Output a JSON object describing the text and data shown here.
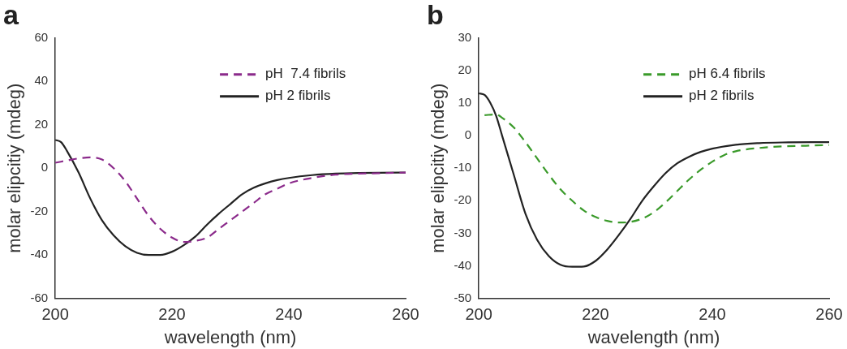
{
  "chart_data": [
    {
      "type": "line",
      "title": "a",
      "xlabel": "wavelength (nm)",
      "ylabel": "molar elipcitiy (mdeg)",
      "xlim": [
        200,
        260
      ],
      "xticks": [
        200,
        220,
        240,
        260
      ],
      "ylim": [
        -60,
        60
      ],
      "yticks": [
        -60,
        -40,
        -20,
        0,
        20,
        40,
        60
      ],
      "legend": "top right",
      "grid": false,
      "marker": "none",
      "series": [
        {
          "name": "pH  7.4 fibrils",
          "color": "#8b2a8b",
          "line_style": "dashed",
          "x": [
            200,
            202,
            204,
            206,
            208,
            210,
            212,
            214,
            216,
            218,
            220,
            222,
            224,
            226,
            228,
            230,
            232,
            234,
            236,
            238,
            240,
            244,
            248,
            252,
            256,
            260
          ],
          "values": [
            2.5,
            3.5,
            4.5,
            5,
            4,
            0,
            -6,
            -14,
            -22,
            -28,
            -32,
            -34,
            -33.5,
            -32,
            -28,
            -24,
            -20,
            -16,
            -12,
            -9.5,
            -7,
            -4.5,
            -3,
            -2.5,
            -2.3,
            -2
          ]
        },
        {
          "name": "pH 2 fibrils",
          "color": "#222222",
          "line_style": "solid",
          "x": [
            200,
            201,
            202,
            204,
            206,
            208,
            210,
            212,
            214,
            216,
            218,
            220,
            222,
            224,
            226,
            228,
            230,
            232,
            234,
            236,
            238,
            240,
            244,
            248,
            252,
            260
          ],
          "values": [
            13,
            12,
            8,
            -2,
            -14,
            -24,
            -31,
            -36,
            -39,
            -40,
            -40,
            -38.5,
            -35.5,
            -31.5,
            -26,
            -21,
            -16.5,
            -12,
            -9,
            -7,
            -5.5,
            -4.5,
            -3.2,
            -2.5,
            -2.2,
            -2
          ]
        }
      ]
    },
    {
      "type": "line",
      "title": "b",
      "xlabel": "wavelength (nm)",
      "ylabel": "molar elipcitiy (mdeg)",
      "xlim": [
        200,
        260
      ],
      "xticks": [
        200,
        220,
        240,
        260
      ],
      "ylim": [
        -50,
        30
      ],
      "yticks": [
        -50,
        -40,
        -30,
        -20,
        -10,
        0,
        10,
        20,
        30
      ],
      "legend": "top right",
      "grid": false,
      "marker": "none",
      "series": [
        {
          "name": "pH 6.4 fibrils",
          "color": "#3a9a2a",
          "line_style": "dashed",
          "x": [
            201,
            203,
            204,
            206,
            208,
            210,
            212,
            214,
            216,
            218,
            220,
            222,
            224,
            226,
            228,
            230,
            232,
            234,
            236,
            238,
            240,
            242,
            244,
            248,
            252,
            256,
            260
          ],
          "values": [
            6.3,
            6.5,
            5.5,
            2.5,
            -2,
            -7,
            -12,
            -16.5,
            -20,
            -23,
            -25,
            -26.2,
            -26.7,
            -26.5,
            -25.5,
            -23.5,
            -20.5,
            -17,
            -13.5,
            -10.5,
            -8,
            -6,
            -4.8,
            -3.8,
            -3.3,
            -3.1,
            -2.9
          ]
        },
        {
          "name": "pH 2 fibrils",
          "color": "#222222",
          "line_style": "solid",
          "x": [
            200,
            201,
            202,
            203,
            204,
            206,
            208,
            210,
            212,
            214,
            216,
            218,
            220,
            222,
            224,
            226,
            228,
            230,
            232,
            234,
            236,
            238,
            240,
            244,
            248,
            252,
            260
          ],
          "values": [
            13,
            12.5,
            10,
            6,
            0,
            -12,
            -24,
            -32,
            -37,
            -39.7,
            -40.3,
            -40.2,
            -38.5,
            -35,
            -30.5,
            -25.5,
            -20,
            -15.5,
            -11.5,
            -8.5,
            -6.5,
            -5,
            -4,
            -2.8,
            -2.3,
            -2.1,
            -2
          ]
        }
      ]
    }
  ]
}
